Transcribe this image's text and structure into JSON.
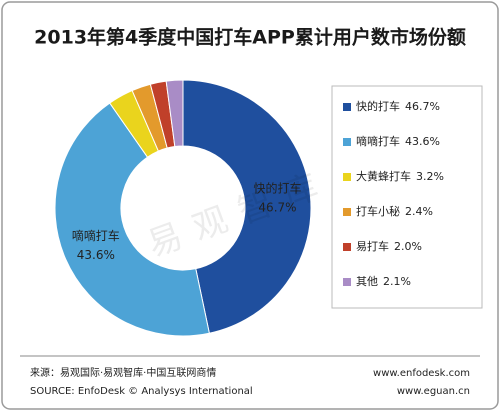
{
  "chart_data": {
    "type": "pie",
    "title": "2013年第4季度中国打车APP累计用户数市场份额",
    "categories": [
      "快的打车",
      "嘀嘀打车",
      "大黄蜂打车",
      "打车小秘",
      "易打车",
      "其他"
    ],
    "values": [
      46.7,
      43.6,
      3.2,
      2.4,
      2.0,
      2.1
    ],
    "value_labels": [
      "46.7%",
      "43.6%",
      "3.2%",
      "2.4%",
      "2.0%",
      "2.1%"
    ],
    "colors": [
      "#1f4f9e",
      "#4da3d6",
      "#ead41d",
      "#e39a2c",
      "#c0402a",
      "#a98cc6"
    ],
    "donut": true,
    "legend": "right",
    "watermark": "易观智库",
    "source": "来源：易观国际·易观智库·中国互联网商情",
    "source_en": "SOURCE: EnfoDesk © Analysys International",
    "links": [
      "www.enfodesk.com",
      "www.eguan.cn"
    ]
  }
}
